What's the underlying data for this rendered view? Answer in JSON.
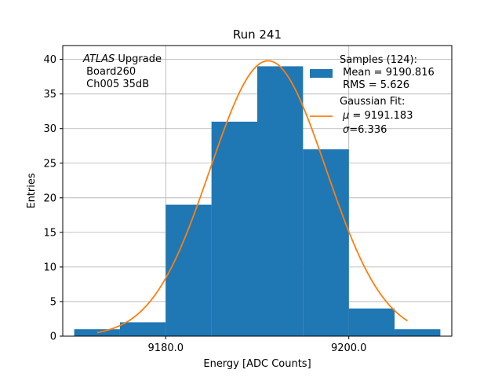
{
  "chart_data": {
    "type": "bar",
    "title": "Run 241",
    "xlabel": "Energy [ADC Counts]",
    "ylabel": "Entries",
    "xlim": [
      9168.75,
      9211.25
    ],
    "ylim": [
      0,
      42
    ],
    "grid": true,
    "x_ticks": [
      9180.0,
      9200.0
    ],
    "x_tick_labels": [
      "9180.0",
      "9200.0"
    ],
    "y_ticks": [
      0,
      5,
      10,
      15,
      20,
      25,
      30,
      35,
      40
    ],
    "y_tick_labels": [
      "0",
      "5",
      "10",
      "15",
      "20",
      "25",
      "30",
      "35",
      "40"
    ],
    "bin_edges": [
      9170,
      9175,
      9180,
      9185,
      9190,
      9195,
      9200,
      9205,
      9210
    ],
    "counts": [
      1,
      2,
      19,
      31,
      39,
      27,
      4,
      1
    ],
    "bar_color": "#1f77b4",
    "fit": {
      "type": "gaussian",
      "mu": 9191.183,
      "sigma": 6.336,
      "amplitude": 39.8,
      "x_range": [
        9172.5,
        9206.4
      ],
      "color": "#ff7f0e"
    },
    "annotation": {
      "italic_part": "ATLAS",
      "first_line_rest": " Upgrade",
      "lines": [
        " Board260",
        " Ch005 35dB"
      ]
    },
    "legend": {
      "position": "top-right",
      "histogram_lines": [
        "Samples (124):",
        " Mean = 9190.816",
        " RMS = 5.626"
      ],
      "fit_lines": [
        "Gaussian Fit:"
      ],
      "fit_mu_symbol": "μ",
      "fit_mu_text": " = 9191.183",
      "fit_sigma_symbol": "σ",
      "fit_sigma_text": "=6.336"
    }
  }
}
